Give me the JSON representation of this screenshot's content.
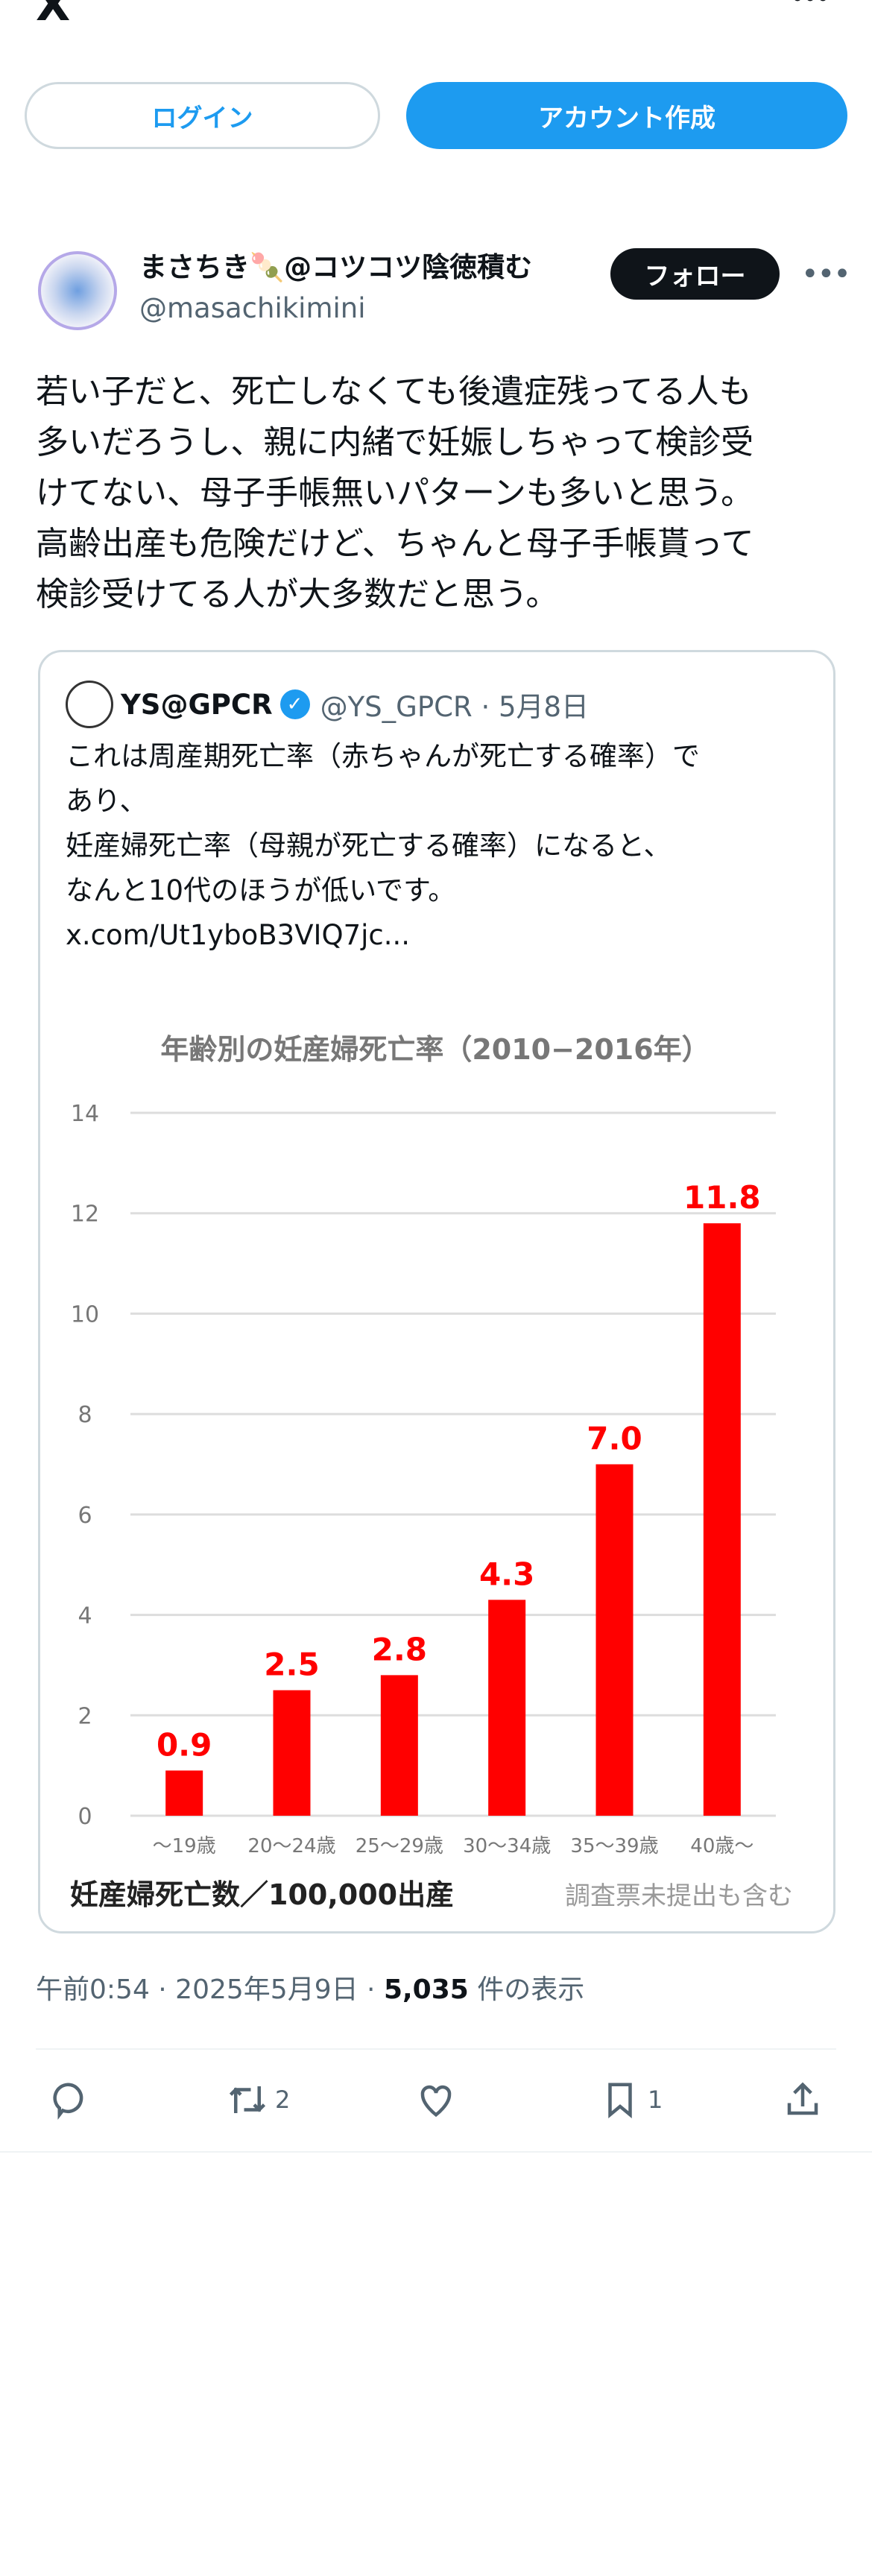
{
  "topbar": {
    "logo": "X",
    "more": "•••"
  },
  "auth": {
    "login": "ログイン",
    "signup": "アカウント作成"
  },
  "tweet": {
    "name": "まさちき🍡@コツコツ陰徳積む",
    "handle": "@masachikimini",
    "follow": "フォロー",
    "more": "•••",
    "body": [
      "若い子だと、死亡しなくても後遺症残ってる人も",
      "多いだろうし、親に内緒で妊娠しちゃって検診受",
      "けてない、母子手帳無いパターンも多いと思う。",
      "高齢出産も危険だけど、ちゃんと母子手帳貰って",
      "検診受けてる人が大多数だと思う。"
    ],
    "time": "午前0:54 · 2025年5月9日 · ",
    "views": "5,035",
    "views_label": " 件の表示",
    "actions": {
      "reply": "",
      "retweet": "2",
      "like": "",
      "bookmark": "1"
    }
  },
  "quote": {
    "name": "YS@GPCR",
    "handle": "@YS_GPCR · 5月8日",
    "text": [
      "これは周産期死亡率（赤ちゃんが死亡する確率）で",
      "あり、",
      "妊産婦死亡率（母親が死亡する確率）になると、",
      "なんと10代のほうが低いです。",
      "x.com/Ut1yboB3VIQ7jc..."
    ]
  },
  "chart_data": {
    "type": "bar",
    "title": "年齢別の妊産婦死亡率（2010−2016年）",
    "categories": [
      "〜19歳",
      "20〜24歳",
      "25〜29歳",
      "30〜34歳",
      "35〜39歳",
      "40歳〜"
    ],
    "values": [
      0.9,
      2.5,
      2.8,
      4.3,
      7.0,
      11.8
    ],
    "value_labels": [
      "0.9",
      "2.5",
      "2.8",
      "4.3",
      "7.0",
      "11.8"
    ],
    "yticks": [
      "0",
      "2",
      "4",
      "6",
      "8",
      "10",
      "12",
      "14"
    ],
    "ylim": [
      0,
      14
    ],
    "ylabel": "妊産婦死亡数／100,000出産",
    "note": "調査票未提出も含む",
    "bar_color": "#ff0000"
  }
}
